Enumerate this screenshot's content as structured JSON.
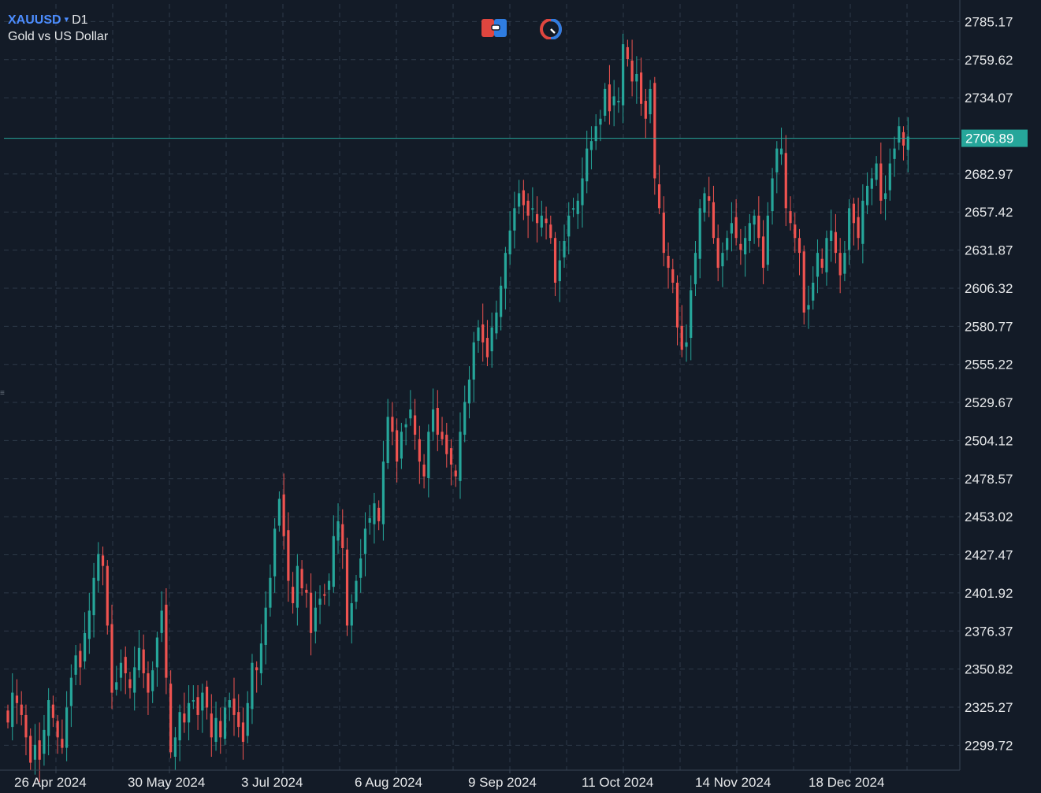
{
  "header": {
    "symbol": "XAUUSD",
    "caret": "▾",
    "timeframe": "D1",
    "description": "Gold vs US Dollar"
  },
  "toolbar": {
    "icons": [
      "trade-panel-icon",
      "timer-icon"
    ]
  },
  "colors": {
    "background": "#131b27",
    "grid": "#2e3a48",
    "bull": "#26a69a",
    "bear": "#ef5350",
    "price_line": "#26a69a",
    "axis_text": "#e6e8ea",
    "accent": "#4c8dff"
  },
  "chart_data": {
    "type": "candlestick",
    "symbol": "XAUUSD",
    "timeframe": "D1",
    "title": "Gold vs US Dollar",
    "current_price": 2706.89,
    "y_ticks": [
      "2785.17",
      "2759.62",
      "2734.07",
      "2706.89",
      "2682.97",
      "2657.42",
      "2631.87",
      "2606.32",
      "2580.77",
      "2555.22",
      "2529.67",
      "2504.12",
      "2478.57",
      "2453.02",
      "2427.47",
      "2401.92",
      "2376.37",
      "2350.82",
      "2325.27",
      "2299.72"
    ],
    "ylim": [
      2283,
      2797
    ],
    "x_ticks": [
      "26 Apr 2024",
      "30 May 2024",
      "3 Jul 2024",
      "6 Aug 2024",
      "9 Sep 2024",
      "11 Oct 2024",
      "14 Nov 2024",
      "18 Dec 2024"
    ],
    "grid": true,
    "closes": [
      2315,
      2335,
      2328,
      2320,
      2305,
      2288,
      2300,
      2290,
      2310,
      2330,
      2318,
      2305,
      2298,
      2325,
      2345,
      2360,
      2352,
      2375,
      2390,
      2412,
      2428,
      2420,
      2380,
      2335,
      2342,
      2355,
      2348,
      2338,
      2352,
      2365,
      2348,
      2335,
      2350,
      2372,
      2390,
      2345,
      2295,
      2305,
      2322,
      2315,
      2328,
      2330,
      2320,
      2335,
      2325,
      2305,
      2318,
      2305,
      2325,
      2330,
      2320,
      2312,
      2302,
      2328,
      2355,
      2350,
      2368,
      2392,
      2412,
      2445,
      2465,
      2440,
      2410,
      2395,
      2420,
      2405,
      2402,
      2375,
      2392,
      2398,
      2400,
      2410,
      2440,
      2450,
      2432,
      2380,
      2395,
      2410,
      2425,
      2445,
      2452,
      2462,
      2450,
      2490,
      2520,
      2510,
      2490,
      2510,
      2515,
      2525,
      2508,
      2490,
      2480,
      2510,
      2525,
      2508,
      2505,
      2495,
      2488,
      2480,
      2510,
      2530,
      2545,
      2570,
      2580,
      2570,
      2560,
      2580,
      2590,
      2608,
      2630,
      2645,
      2660,
      2670,
      2662,
      2655,
      2660,
      2650,
      2655,
      2650,
      2640,
      2610,
      2625,
      2638,
      2655,
      2660,
      2665,
      2680,
      2700,
      2705,
      2715,
      2720,
      2740,
      2725,
      2735,
      2732,
      2770,
      2760,
      2745,
      2750,
      2730,
      2720,
      2740,
      2680,
      2660,
      2630,
      2620,
      2610,
      2580,
      2565,
      2570,
      2605,
      2630,
      2660,
      2670,
      2665,
      2640,
      2620,
      2630,
      2640,
      2650,
      2640,
      2632,
      2640,
      2650,
      2655,
      2640,
      2620,
      2655,
      2680,
      2700,
      2700,
      2660,
      2650,
      2640,
      2630,
      2590,
      2595,
      2610,
      2630,
      2620,
      2640,
      2645,
      2630,
      2615,
      2630,
      2660,
      2650,
      2640,
      2665,
      2675,
      2680,
      2690,
      2665,
      2670,
      2690,
      2700,
      2715,
      2702,
      2708
    ]
  }
}
